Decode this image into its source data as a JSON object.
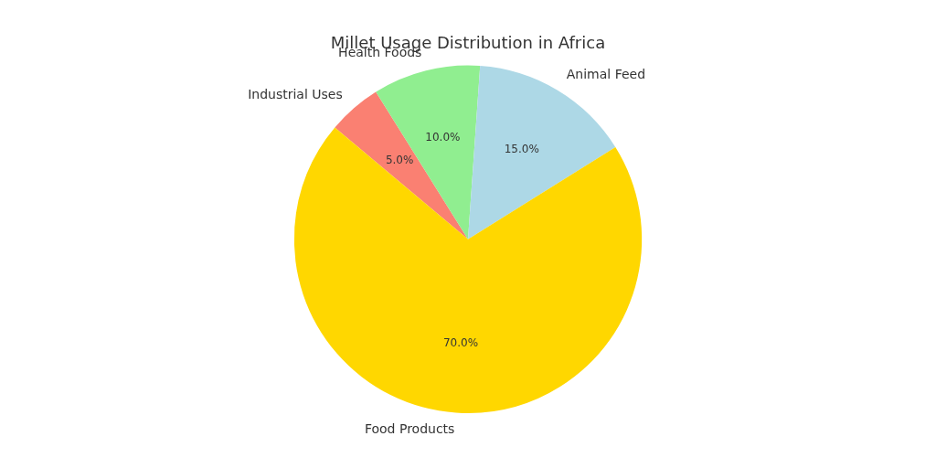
{
  "chart_data": {
    "type": "pie",
    "title": "Millet Usage Distribution in Africa",
    "categories": [
      "Industrial Uses",
      "Health Foods",
      "Animal Feed",
      "Food Products"
    ],
    "values": [
      5,
      10,
      15,
      70
    ],
    "value_labels": [
      "5.0%",
      "10.0%",
      "15.0%",
      "70.0%"
    ],
    "colors": [
      "#fa8072",
      "#90ee90",
      "#add8e6",
      "#ffd700"
    ],
    "data_labels": true
  }
}
